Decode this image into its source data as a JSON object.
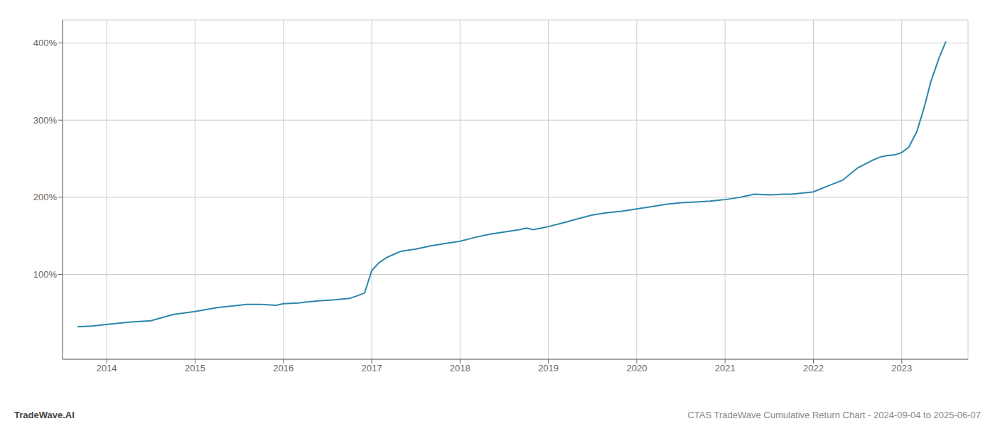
{
  "chart_data": {
    "type": "line",
    "title": "CTAS TradeWave Cumulative Return Chart - 2024-09-04 to 2025-06-07",
    "annotations": [
      "TradeWave.AI"
    ],
    "color": "#2e86ab",
    "grid": true,
    "xlim": [
      2013.5,
      2023.75
    ],
    "ylim": [
      -10,
      430
    ],
    "xticks": [
      2014,
      2015,
      2016,
      2017,
      2018,
      2019,
      2020,
      2021,
      2022,
      2023
    ],
    "yticks": [
      {
        "value": 100,
        "label": "100%"
      },
      {
        "value": 200,
        "label": "200%"
      },
      {
        "value": 300,
        "label": "300%"
      },
      {
        "value": 400,
        "label": "400%"
      }
    ],
    "x": [
      2013.67,
      2013.83,
      2014.0,
      2014.25,
      2014.5,
      2014.75,
      2015.0,
      2015.25,
      2015.42,
      2015.58,
      2015.75,
      2015.92,
      2016.0,
      2016.17,
      2016.25,
      2016.42,
      2016.58,
      2016.75,
      2016.83,
      2016.92,
      2017.0,
      2017.08,
      2017.17,
      2017.25,
      2017.33,
      2017.5,
      2017.67,
      2017.83,
      2018.0,
      2018.17,
      2018.33,
      2018.5,
      2018.67,
      2018.75,
      2018.83,
      2019.0,
      2019.17,
      2019.33,
      2019.5,
      2019.67,
      2019.83,
      2020.0,
      2020.17,
      2020.33,
      2020.5,
      2020.67,
      2020.83,
      2021.0,
      2021.17,
      2021.25,
      2021.33,
      2021.5,
      2021.67,
      2021.75,
      2021.83,
      2022.0,
      2022.17,
      2022.33,
      2022.5,
      2022.67,
      2022.75,
      2022.83,
      2022.92,
      2023.0,
      2023.08,
      2023.17,
      2023.25,
      2023.33,
      2023.42,
      2023.5
    ],
    "values": [
      32,
      33,
      35,
      38,
      40,
      48,
      52,
      57,
      59,
      61,
      61,
      60,
      62,
      63,
      64,
      66,
      67,
      69,
      72,
      76,
      105,
      115,
      122,
      126,
      130,
      133,
      137,
      140,
      143,
      148,
      152,
      155,
      158,
      160,
      158,
      162,
      167,
      172,
      177,
      180,
      182,
      185,
      188,
      191,
      193,
      194,
      195,
      197,
      200,
      202,
      204,
      203,
      204,
      204,
      205,
      207,
      215,
      222,
      238,
      248,
      252,
      254,
      255,
      258,
      265,
      285,
      315,
      350,
      380,
      402
    ]
  }
}
